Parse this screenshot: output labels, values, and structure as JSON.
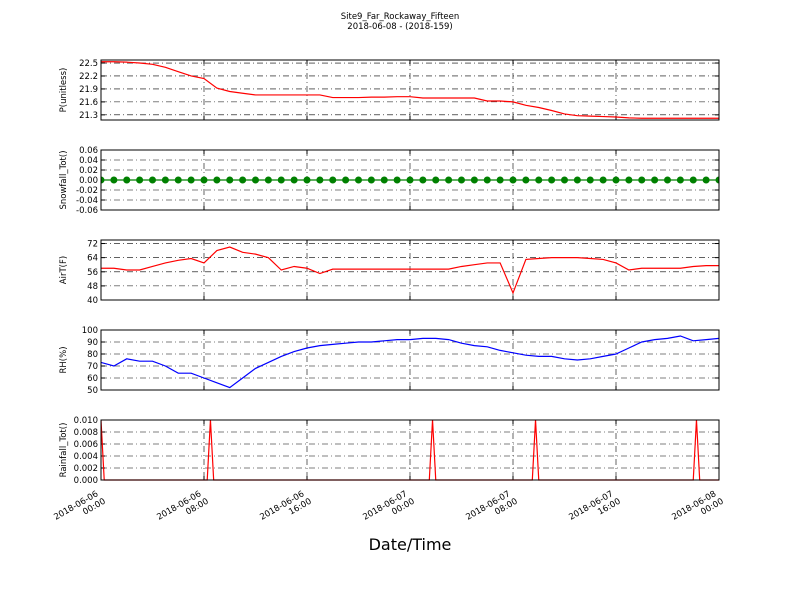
{
  "header": {
    "title": "Site9_Far_Rockaway_Fifteen",
    "subtitle": "2018-06-08 - (2018-159)"
  },
  "x_axis": {
    "label": "Date/Time",
    "xlim": [
      "2018-06-06 00:00",
      "2018-06-08 00:00"
    ],
    "xticks": [
      "2018-06-06 00:00",
      "2018-06-06 08:00",
      "2018-06-06 16:00",
      "2018-06-07 00:00",
      "2018-06-07 08:00",
      "2018-06-07 16:00",
      "2018-06-08 00:00"
    ]
  },
  "chart_data": [
    {
      "type": "line",
      "ylabel": "P(unitless)",
      "color": "#ff0000",
      "grid": true,
      "ylim": [
        21.18,
        22.57
      ],
      "yticks": [
        21.3,
        21.6,
        21.9,
        22.2,
        22.5
      ],
      "x": [
        "2018-06-06 00:00",
        "2018-06-06 01:00",
        "2018-06-06 02:00",
        "2018-06-06 03:00",
        "2018-06-06 04:00",
        "2018-06-06 05:00",
        "2018-06-06 06:00",
        "2018-06-06 07:00",
        "2018-06-06 08:00",
        "2018-06-06 09:00",
        "2018-06-06 10:00",
        "2018-06-06 11:00",
        "2018-06-06 12:00",
        "2018-06-06 13:00",
        "2018-06-06 14:00",
        "2018-06-06 15:00",
        "2018-06-06 16:00",
        "2018-06-06 17:00",
        "2018-06-06 18:00",
        "2018-06-06 19:00",
        "2018-06-06 20:00",
        "2018-06-06 21:00",
        "2018-06-06 22:00",
        "2018-06-06 23:00",
        "2018-06-07 00:00",
        "2018-06-07 01:00",
        "2018-06-07 02:00",
        "2018-06-07 03:00",
        "2018-06-07 04:00",
        "2018-06-07 05:00",
        "2018-06-07 06:00",
        "2018-06-07 07:00",
        "2018-06-07 08:00",
        "2018-06-07 09:00",
        "2018-06-07 10:00",
        "2018-06-07 11:00",
        "2018-06-07 12:00",
        "2018-06-07 13:00",
        "2018-06-07 14:00",
        "2018-06-07 15:00",
        "2018-06-07 16:00",
        "2018-06-07 17:00",
        "2018-06-07 18:00",
        "2018-06-07 19:00",
        "2018-06-07 20:00",
        "2018-06-07 21:00",
        "2018-06-07 22:00",
        "2018-06-07 23:00",
        "2018-06-08 00:00"
      ],
      "values": [
        22.53,
        22.53,
        22.52,
        22.5,
        22.47,
        22.4,
        22.3,
        22.2,
        22.14,
        21.92,
        21.84,
        21.8,
        21.76,
        21.76,
        21.76,
        21.76,
        21.76,
        21.76,
        21.7,
        21.7,
        21.7,
        21.71,
        21.71,
        21.72,
        21.72,
        21.69,
        21.69,
        21.69,
        21.69,
        21.69,
        21.62,
        21.62,
        21.6,
        21.52,
        21.47,
        21.4,
        21.32,
        21.28,
        21.27,
        21.26,
        21.25,
        21.23,
        21.22,
        21.22,
        21.22,
        21.22,
        21.22,
        21.22,
        21.22
      ]
    },
    {
      "type": "line",
      "ylabel": "Snowfall_Tot()",
      "color": "#008000",
      "marker": "o",
      "grid": true,
      "ylim": [
        -0.06,
        0.06
      ],
      "yticks": [
        -0.06,
        -0.04,
        -0.02,
        {
          "value": 0,
          "label": "0.00"
        },
        0.02,
        0.04,
        0.06
      ],
      "x": [
        "2018-06-06 00:00",
        "2018-06-06 01:00",
        "2018-06-06 02:00",
        "2018-06-06 03:00",
        "2018-06-06 04:00",
        "2018-06-06 05:00",
        "2018-06-06 06:00",
        "2018-06-06 07:00",
        "2018-06-06 08:00",
        "2018-06-06 09:00",
        "2018-06-06 10:00",
        "2018-06-06 11:00",
        "2018-06-06 12:00",
        "2018-06-06 13:00",
        "2018-06-06 14:00",
        "2018-06-06 15:00",
        "2018-06-06 16:00",
        "2018-06-06 17:00",
        "2018-06-06 18:00",
        "2018-06-06 19:00",
        "2018-06-06 20:00",
        "2018-06-06 21:00",
        "2018-06-06 22:00",
        "2018-06-06 23:00",
        "2018-06-07 00:00",
        "2018-06-07 01:00",
        "2018-06-07 02:00",
        "2018-06-07 03:00",
        "2018-06-07 04:00",
        "2018-06-07 05:00",
        "2018-06-07 06:00",
        "2018-06-07 07:00",
        "2018-06-07 08:00",
        "2018-06-07 09:00",
        "2018-06-07 10:00",
        "2018-06-07 11:00",
        "2018-06-07 12:00",
        "2018-06-07 13:00",
        "2018-06-07 14:00",
        "2018-06-07 15:00",
        "2018-06-07 16:00",
        "2018-06-07 17:00",
        "2018-06-07 18:00",
        "2018-06-07 19:00",
        "2018-06-07 20:00",
        "2018-06-07 21:00",
        "2018-06-07 22:00",
        "2018-06-07 23:00",
        "2018-06-08 00:00"
      ],
      "values": [
        0,
        0,
        0,
        0,
        0,
        0,
        0,
        0,
        0,
        0,
        0,
        0,
        0,
        0,
        0,
        0,
        0,
        0,
        0,
        0,
        0,
        0,
        0,
        0,
        0,
        0,
        0,
        0,
        0,
        0,
        0,
        0,
        0,
        0,
        0,
        0,
        0,
        0,
        0,
        0,
        0,
        0,
        0,
        0,
        0,
        0,
        0,
        0,
        0
      ]
    },
    {
      "type": "line",
      "ylabel": "AirT(F)",
      "color": "#ff0000",
      "grid": true,
      "ylim": [
        40,
        74
      ],
      "yticks": [
        40,
        48,
        56,
        64,
        72
      ],
      "x": [
        "2018-06-06 00:00",
        "2018-06-06 01:00",
        "2018-06-06 02:00",
        "2018-06-06 03:00",
        "2018-06-06 04:00",
        "2018-06-06 05:00",
        "2018-06-06 06:00",
        "2018-06-06 07:00",
        "2018-06-06 08:00",
        "2018-06-06 09:00",
        "2018-06-06 10:00",
        "2018-06-06 11:00",
        "2018-06-06 12:00",
        "2018-06-06 13:00",
        "2018-06-06 14:00",
        "2018-06-06 15:00",
        "2018-06-06 16:00",
        "2018-06-06 17:00",
        "2018-06-06 18:00",
        "2018-06-06 19:00",
        "2018-06-06 20:00",
        "2018-06-06 21:00",
        "2018-06-06 22:00",
        "2018-06-06 23:00",
        "2018-06-07 00:00",
        "2018-06-07 01:00",
        "2018-06-07 02:00",
        "2018-06-07 03:00",
        "2018-06-07 04:00",
        "2018-06-07 05:00",
        "2018-06-07 06:00",
        "2018-06-07 07:00",
        "2018-06-07 08:00",
        "2018-06-07 09:00",
        "2018-06-07 10:00",
        "2018-06-07 11:00",
        "2018-06-07 12:00",
        "2018-06-07 13:00",
        "2018-06-07 14:00",
        "2018-06-07 15:00",
        "2018-06-07 16:00",
        "2018-06-07 17:00",
        "2018-06-07 18:00",
        "2018-06-07 19:00",
        "2018-06-07 20:00",
        "2018-06-07 21:00",
        "2018-06-07 22:00",
        "2018-06-07 23:00",
        "2018-06-08 00:00"
      ],
      "values": [
        58,
        58,
        57,
        57,
        59,
        61,
        62.5,
        63.5,
        61,
        68,
        70,
        67,
        66,
        64,
        57,
        59,
        58,
        55,
        57.5,
        57.5,
        57.5,
        57.5,
        57.5,
        57.5,
        57.5,
        57.5,
        57.5,
        57.5,
        59,
        60,
        61,
        61,
        44,
        63,
        63.5,
        64,
        64,
        64,
        63.5,
        63,
        61,
        57,
        58,
        58,
        58,
        58,
        59,
        59.5,
        59.5
      ]
    },
    {
      "type": "line",
      "ylabel": "RH(%)",
      "color": "#0000ff",
      "grid": true,
      "ylim": [
        50,
        100
      ],
      "yticks": [
        50,
        60,
        70,
        80,
        90,
        100
      ],
      "x": [
        "2018-06-06 00:00",
        "2018-06-06 01:00",
        "2018-06-06 02:00",
        "2018-06-06 03:00",
        "2018-06-06 04:00",
        "2018-06-06 05:00",
        "2018-06-06 06:00",
        "2018-06-06 07:00",
        "2018-06-06 08:00",
        "2018-06-06 09:00",
        "2018-06-06 10:00",
        "2018-06-06 11:00",
        "2018-06-06 12:00",
        "2018-06-06 13:00",
        "2018-06-06 14:00",
        "2018-06-06 15:00",
        "2018-06-06 16:00",
        "2018-06-06 17:00",
        "2018-06-06 18:00",
        "2018-06-06 19:00",
        "2018-06-06 20:00",
        "2018-06-06 21:00",
        "2018-06-06 22:00",
        "2018-06-06 23:00",
        "2018-06-07 00:00",
        "2018-06-07 01:00",
        "2018-06-07 02:00",
        "2018-06-07 03:00",
        "2018-06-07 04:00",
        "2018-06-07 05:00",
        "2018-06-07 06:00",
        "2018-06-07 07:00",
        "2018-06-07 08:00",
        "2018-06-07 09:00",
        "2018-06-07 10:00",
        "2018-06-07 11:00",
        "2018-06-07 12:00",
        "2018-06-07 13:00",
        "2018-06-07 14:00",
        "2018-06-07 15:00",
        "2018-06-07 16:00",
        "2018-06-07 17:00",
        "2018-06-07 18:00",
        "2018-06-07 19:00",
        "2018-06-07 20:00",
        "2018-06-07 21:00",
        "2018-06-07 22:00",
        "2018-06-07 23:00",
        "2018-06-08 00:00"
      ],
      "values": [
        73,
        70,
        76,
        74,
        74,
        70,
        64,
        64,
        60,
        56,
        52,
        60,
        68,
        73,
        78,
        82,
        85,
        87,
        88,
        89,
        90,
        90,
        91,
        92,
        92,
        93,
        93,
        92,
        89,
        87,
        86,
        83,
        81,
        79,
        78,
        78,
        76,
        75,
        76,
        78,
        80,
        85,
        90,
        92,
        93,
        95,
        91,
        92,
        93
      ]
    },
    {
      "type": "line",
      "ylabel": "Rainfall_Tot()",
      "color": "#ff0000",
      "grid": true,
      "ylim": [
        0,
        0.01
      ],
      "yticks": [
        {
          "value": 0,
          "label": "0.000"
        },
        {
          "value": 0.002,
          "label": "0.002"
        },
        {
          "value": 0.004,
          "label": "0.004"
        },
        {
          "value": 0.006,
          "label": "0.006"
        },
        {
          "value": 0.008,
          "label": "0.008"
        },
        {
          "value": 0.01,
          "label": "0.010"
        }
      ],
      "x": [
        "2018-06-06 00:00",
        "2018-06-06 00:15",
        "2018-06-06 08:15",
        "2018-06-06 08:30",
        "2018-06-06 08:45",
        "2018-06-07 01:30",
        "2018-06-07 01:45",
        "2018-06-07 02:00",
        "2018-06-07 09:30",
        "2018-06-07 09:45",
        "2018-06-07 10:00",
        "2018-06-07 22:00",
        "2018-06-07 22:15",
        "2018-06-07 22:30",
        "2018-06-08 00:00"
      ],
      "values": [
        0.01,
        0,
        0,
        0.01,
        0,
        0,
        0.01,
        0,
        0,
        0.01,
        0,
        0,
        0.01,
        0,
        0
      ]
    }
  ]
}
